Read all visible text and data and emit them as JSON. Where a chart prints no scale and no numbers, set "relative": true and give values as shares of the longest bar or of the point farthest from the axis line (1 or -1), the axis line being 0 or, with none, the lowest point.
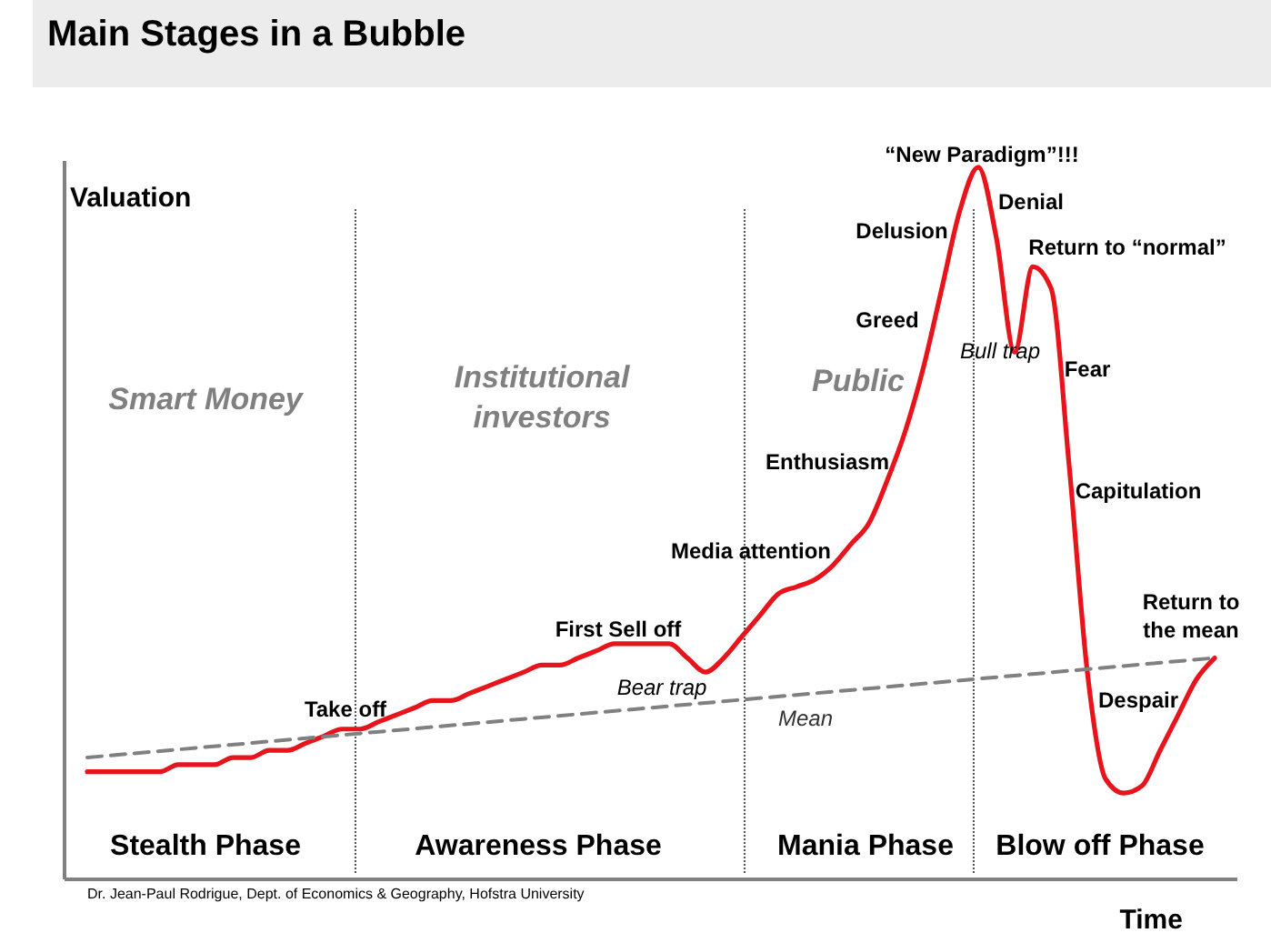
{
  "chart_data": {
    "type": "line",
    "title": "Main Stages in a Bubble",
    "xlabel": "Time",
    "ylabel": "Valuation",
    "relative": true,
    "categories": [
      null,
      null,
      null,
      null,
      null,
      null,
      null,
      null,
      null,
      null,
      null,
      null,
      null,
      null,
      null,
      null,
      null,
      null,
      null,
      null,
      null,
      null,
      null,
      null,
      null,
      null,
      null,
      null,
      null,
      null,
      null,
      null,
      null,
      null,
      null,
      null,
      null,
      null,
      null,
      null,
      null,
      null,
      null,
      null,
      null,
      null,
      null,
      null,
      null,
      null,
      null,
      null,
      null,
      null,
      null,
      null,
      null,
      null,
      null,
      null,
      null,
      null,
      null
    ],
    "series": [
      {
        "color": "#e8141c",
        "values": [
          0.15,
          0.15,
          0.15,
          0.15,
          0.15,
          0.16,
          0.16,
          0.16,
          0.17,
          0.17,
          0.18,
          0.18,
          0.19,
          0.2,
          0.21,
          0.21,
          0.22,
          0.23,
          0.24,
          0.25,
          0.25,
          0.26,
          0.27,
          0.28,
          0.29,
          0.3,
          0.3,
          0.31,
          0.32,
          0.33,
          0.33,
          0.33,
          0.33,
          0.31,
          0.29,
          0.31,
          0.34,
          0.37,
          0.4,
          0.41,
          0.42,
          0.44,
          0.47,
          0.5,
          0.56,
          0.63,
          0.72,
          0.83,
          0.94,
          1,
          0.9,
          0.74,
          0.86,
          0.83,
          0.58,
          0.29,
          0.14,
          0.12,
          0.13,
          0.18,
          0.23,
          0.28,
          0.31
        ]
      },
      {
        "name": "Mean",
        "color": "#808080",
        "line_style": "dashed",
        "values": [
          0.17,
          null,
          null,
          null,
          null,
          null,
          null,
          null,
          null,
          null,
          null,
          null,
          null,
          null,
          null,
          null,
          null,
          null,
          null,
          null,
          null,
          null,
          null,
          null,
          null,
          null,
          null,
          null,
          null,
          null,
          null,
          null,
          null,
          null,
          null,
          null,
          null,
          null,
          null,
          null,
          null,
          null,
          null,
          null,
          null,
          null,
          null,
          null,
          null,
          null,
          null,
          null,
          null,
          null,
          null,
          null,
          null,
          null,
          null,
          null,
          null,
          null,
          0.31
        ]
      }
    ],
    "annotations": [
      "Smart Money",
      "Institutional\ninvestors",
      "Public",
      "Take off",
      "First Sell off",
      "Bear trap",
      "Media attention",
      "Enthusiasm",
      "Greed",
      "Delusion",
      "“New Paradigm”!!!",
      "Denial",
      "Return to “normal”",
      "Bull trap",
      "Fear",
      "Capitulation",
      "Return to\nthe mean",
      "Despair",
      "Stealth Phase",
      "Awareness Phase",
      "Mania Phase",
      "Blow off Phase",
      "Dr. Jean-Paul Rodrigue, Dept. of Economics & Geography, Hofstra University"
    ]
  }
}
